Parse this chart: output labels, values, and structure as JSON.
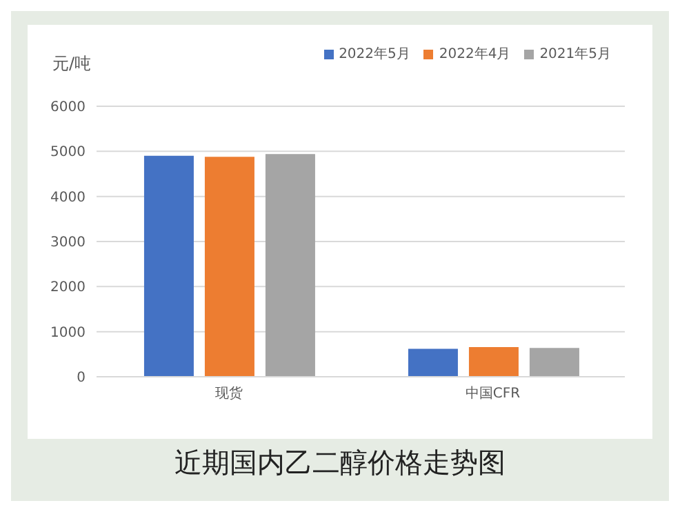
{
  "chart_data": {
    "type": "bar",
    "title": "近期国内乙二醇价格走势图",
    "ylabel": "元/吨",
    "categories": [
      "现货",
      "中国CFR"
    ],
    "series": [
      {
        "name": "2022年5月",
        "color": "#4472c4",
        "values": [
          4900,
          620
        ]
      },
      {
        "name": "2022年4月",
        "color": "#ed7d31",
        "values": [
          4880,
          660
        ]
      },
      {
        "name": "2021年5月",
        "color": "#a5a5a5",
        "values": [
          4940,
          640
        ]
      }
    ],
    "ylim": [
      0,
      6000
    ],
    "yticks": [
      0,
      1000,
      2000,
      3000,
      4000,
      5000,
      6000
    ],
    "grid": "y",
    "legend": "top right"
  }
}
